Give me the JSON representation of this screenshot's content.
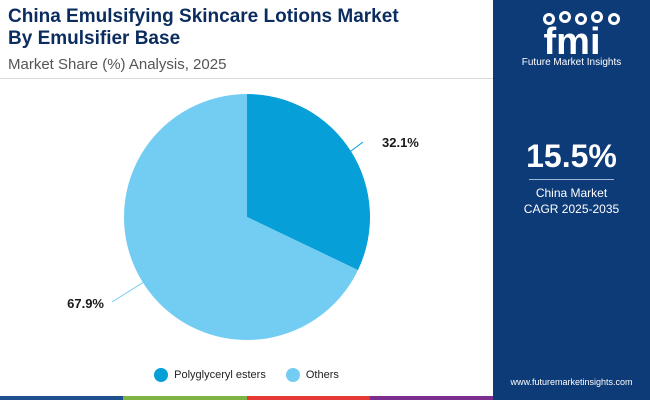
{
  "title_line1": "China Emulsifying Skincare Lotions Market",
  "title_line2": "By Emulsifier Base",
  "subtitle": "Market Share (%) Analysis, 2025",
  "chart_data": {
    "type": "pie",
    "categories": [
      "Polyglyceryl esters",
      "Others"
    ],
    "values": [
      32.1,
      67.9
    ],
    "labels": [
      "32.1%",
      "67.9%"
    ],
    "colors": [
      "#069fd8",
      "#73cdf2"
    ],
    "legend_position": "bottom"
  },
  "sidebar": {
    "logo_text": "fmi",
    "logo_caption": "Future Market Insights",
    "cagr_value": "15.5%",
    "cagr_label_line1": "China Market",
    "cagr_label_line2": "CAGR 2025-2035",
    "website": "www.futuremarketinsights.com",
    "background": "#0d3b78"
  },
  "bottom_bar_colors": [
    "#1f4f8f",
    "#7cb342",
    "#e53935",
    "#7b2e8e"
  ]
}
